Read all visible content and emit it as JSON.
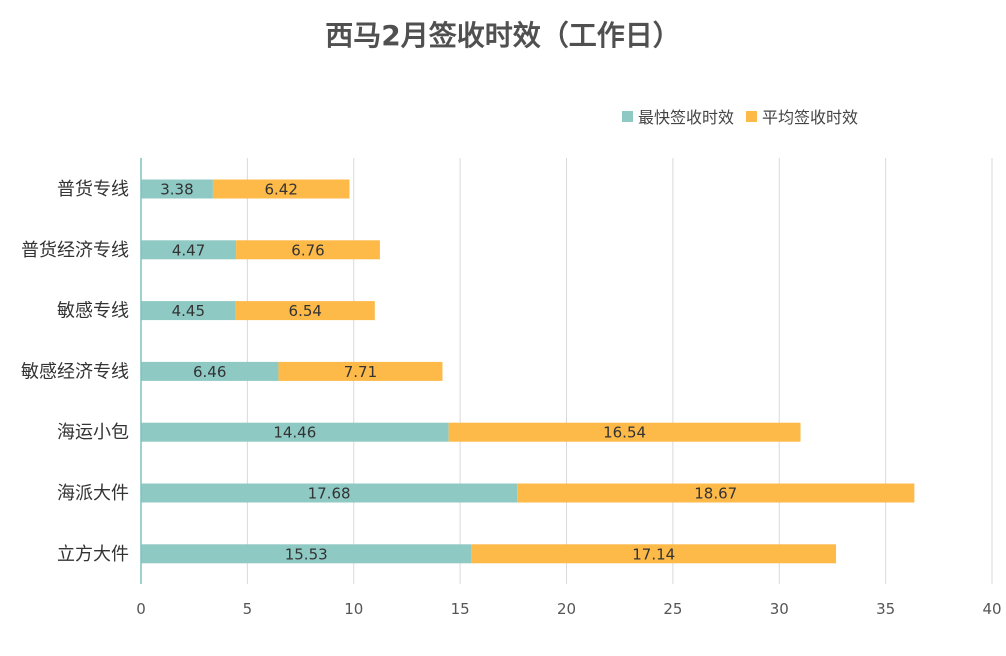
{
  "chart_data": {
    "type": "bar",
    "orientation": "horizontal",
    "stacked": true,
    "title": "西马2月签收时效（工作日）",
    "categories": [
      "普货专线",
      "普货经济专线",
      "敏感专线",
      "敏感经济专线",
      "海运小包",
      "海派大件",
      "立方大件"
    ],
    "series": [
      {
        "name": "最快签收时效",
        "color": "#8FC9C4",
        "values": [
          3.38,
          4.47,
          4.45,
          6.46,
          14.46,
          17.68,
          15.53
        ]
      },
      {
        "name": "平均签收时效",
        "color": "#FDBA48",
        "values": [
          6.42,
          6.76,
          6.54,
          7.71,
          16.54,
          18.67,
          17.14
        ]
      }
    ],
    "xlim": [
      0,
      40
    ],
    "xticks": [
      0,
      5,
      10,
      15,
      20,
      25,
      30,
      35,
      40
    ],
    "grid": true,
    "legend_position": "top-right"
  }
}
